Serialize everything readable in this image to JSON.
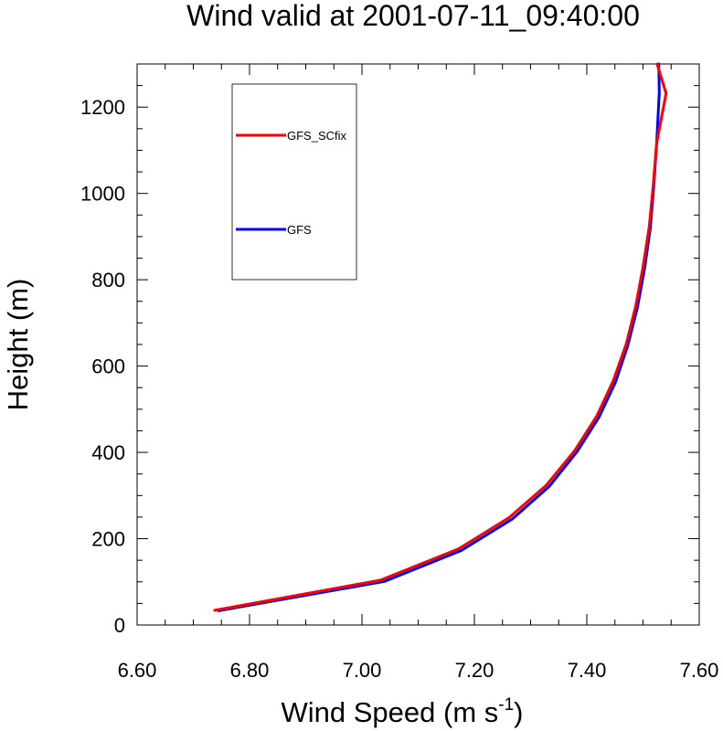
{
  "chart_data": {
    "type": "line",
    "title": "Wind valid at 2001-07-11_09:40:00",
    "xlabel_main": "Wind Speed (m s",
    "xlabel_sup": "-1",
    "xlabel_close": ")",
    "ylabel": "Height (m)",
    "xlim": [
      6.6,
      7.6
    ],
    "ylim": [
      0,
      1300
    ],
    "xticks": [
      6.6,
      6.8,
      7.0,
      7.2,
      7.4,
      7.6
    ],
    "xtick_labels": [
      "6.60",
      "6.80",
      "7.00",
      "7.20",
      "7.40",
      "7.60"
    ],
    "yticks": [
      0,
      200,
      400,
      600,
      800,
      1000,
      1200
    ],
    "ytick_labels": [
      "0",
      "200",
      "400",
      "600",
      "800",
      "1000",
      "1200"
    ],
    "grid": false,
    "legend_position": "top-left",
    "series": [
      {
        "name": "GFS",
        "color": "#0000ff",
        "points": [
          [
            6.745,
            33
          ],
          [
            7.04,
            101
          ],
          [
            7.177,
            173
          ],
          [
            7.268,
            246
          ],
          [
            7.333,
            321
          ],
          [
            7.383,
            402
          ],
          [
            7.422,
            482
          ],
          [
            7.451,
            563
          ],
          [
            7.473,
            648
          ],
          [
            7.49,
            736
          ],
          [
            7.503,
            827
          ],
          [
            7.513,
            920
          ],
          [
            7.519,
            1015
          ],
          [
            7.524,
            1112
          ],
          [
            7.529,
            1234
          ],
          [
            7.528,
            1300
          ]
        ]
      },
      {
        "name": "GFS_SCfix",
        "color": "#ff0000",
        "points": [
          [
            6.738,
            34
          ],
          [
            7.033,
            104
          ],
          [
            7.171,
            176
          ],
          [
            7.262,
            249
          ],
          [
            7.328,
            324
          ],
          [
            7.379,
            405
          ],
          [
            7.418,
            485
          ],
          [
            7.447,
            566
          ],
          [
            7.47,
            651
          ],
          [
            7.487,
            739
          ],
          [
            7.5,
            830
          ],
          [
            7.511,
            923
          ],
          [
            7.518,
            1018
          ],
          [
            7.524,
            1115
          ],
          [
            7.541,
            1232
          ],
          [
            7.525,
            1300
          ]
        ]
      }
    ],
    "legend_order": [
      "GFS_SCfix",
      "GFS"
    ]
  }
}
